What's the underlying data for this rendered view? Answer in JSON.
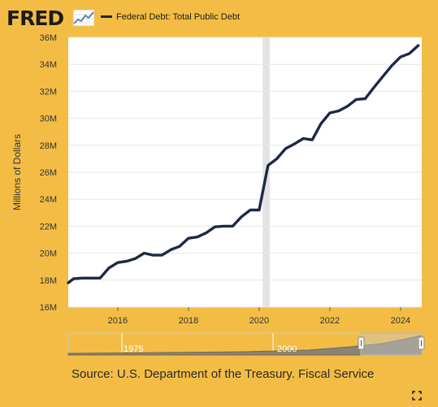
{
  "header": {
    "logo_text": "FRED",
    "logo_icon": "line-chart-icon",
    "legend_label": "Federal Debt: Total Public Debt"
  },
  "chart_data": {
    "type": "line",
    "title": "",
    "xlabel": "",
    "ylabel": "Millions of Dollars",
    "xlim": [
      2014.6,
      2024.6
    ],
    "ylim": [
      16,
      36
    ],
    "ytick_labels": [
      "16M",
      "18M",
      "20M",
      "22M",
      "24M",
      "26M",
      "28M",
      "30M",
      "32M",
      "34M",
      "36M"
    ],
    "ytick_values": [
      16,
      18,
      20,
      22,
      24,
      26,
      28,
      30,
      32,
      34,
      36
    ],
    "xtick_labels": [
      "2016",
      "2018",
      "2020",
      "2022",
      "2024"
    ],
    "xtick_values": [
      2016,
      2018,
      2020,
      2022,
      2024
    ],
    "grid": "horizontal",
    "recession_shading": [
      2020.1,
      2020.3
    ],
    "colors": {
      "series": "#1b2a46",
      "background": "#ffffff",
      "frame": "#f3bd45",
      "recession": "#e3e3e3"
    },
    "series": [
      {
        "name": "Federal Debt: Total Public Debt",
        "x": [
          2014.6,
          2014.75,
          2015.0,
          2015.25,
          2015.5,
          2015.75,
          2016.0,
          2016.25,
          2016.5,
          2016.75,
          2017.0,
          2017.25,
          2017.5,
          2017.75,
          2018.0,
          2018.25,
          2018.5,
          2018.75,
          2019.0,
          2019.25,
          2019.5,
          2019.75,
          2020.0,
          2020.25,
          2020.5,
          2020.75,
          2021.0,
          2021.25,
          2021.5,
          2021.75,
          2022.0,
          2022.25,
          2022.5,
          2022.75,
          2023.0,
          2023.25,
          2023.5,
          2023.75,
          2024.0,
          2024.25,
          2024.5
        ],
        "values": [
          17.8,
          18.1,
          18.15,
          18.15,
          18.15,
          18.9,
          19.3,
          19.4,
          19.6,
          20.0,
          19.85,
          19.85,
          20.25,
          20.5,
          21.1,
          21.2,
          21.5,
          21.95,
          22.0,
          22.0,
          22.7,
          23.2,
          23.2,
          26.5,
          27.0,
          27.75,
          28.1,
          28.5,
          28.4,
          29.6,
          30.4,
          30.55,
          30.9,
          31.4,
          31.45,
          32.3,
          33.1,
          33.9,
          34.55,
          34.8,
          35.4
        ]
      }
    ]
  },
  "navigator": {
    "labels": [
      "1975",
      "2000"
    ]
  },
  "source_text": "Source: U.S. Department of the Treasury. Fiscal Service",
  "controls": {
    "expand_icon": "expand-icon"
  }
}
